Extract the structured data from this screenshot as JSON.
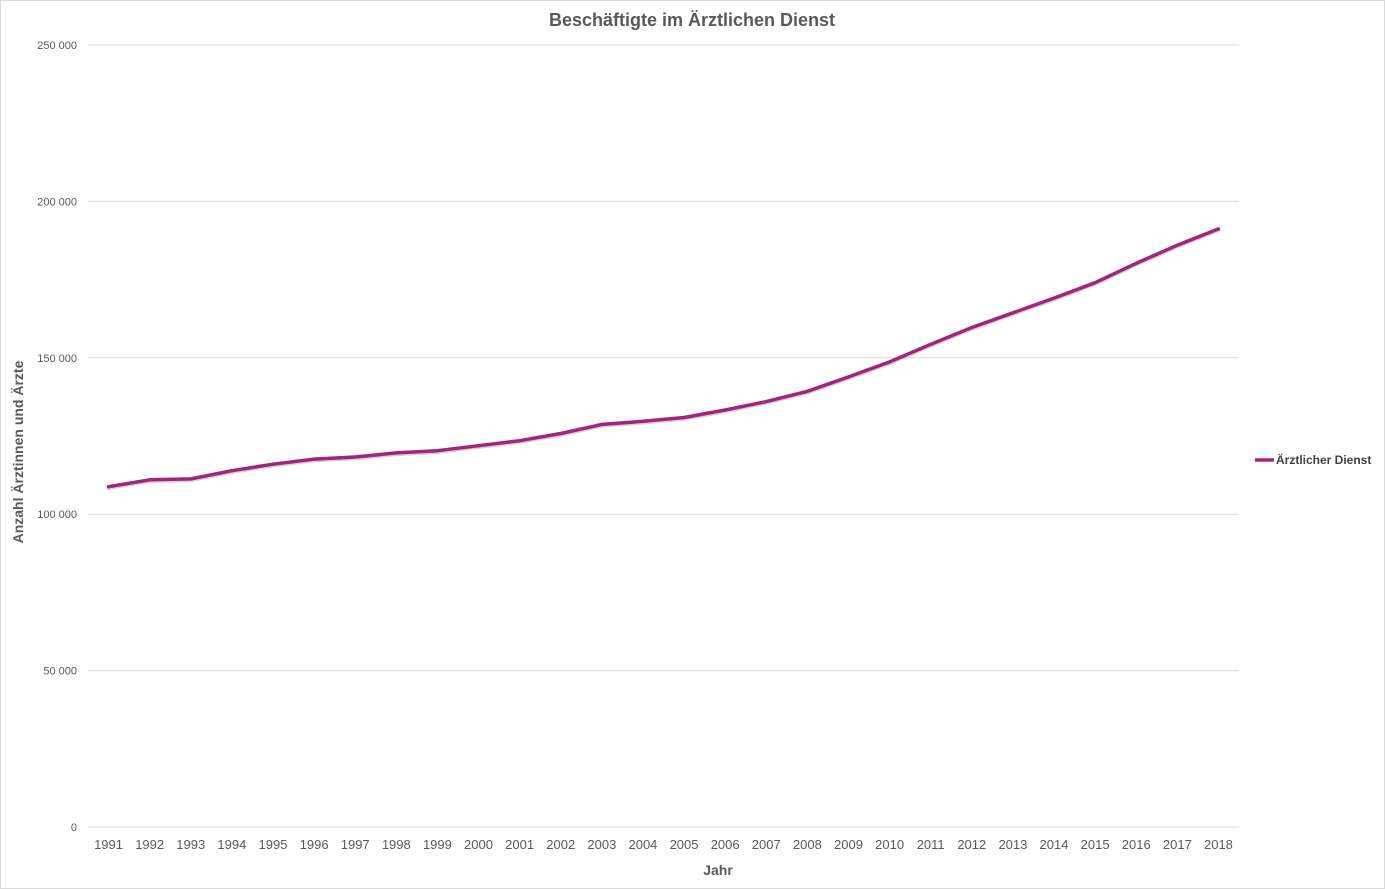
{
  "chart_data": {
    "type": "line",
    "title": "Beschäftigte im Ärztlichen Dienst",
    "xlabel": "Jahr",
    "ylabel": "Anzahl Ärztinnen und Ärzte",
    "ylim": [
      0,
      250000
    ],
    "y_ticks": [
      "0",
      "50 000",
      "100 000",
      "150 000",
      "200 000",
      "250 000"
    ],
    "y_tick_values": [
      0,
      50000,
      100000,
      150000,
      200000,
      250000
    ],
    "categories": [
      "1991",
      "1992",
      "1993",
      "1994",
      "1995",
      "1996",
      "1997",
      "1998",
      "1999",
      "2000",
      "2001",
      "2002",
      "2003",
      "2004",
      "2005",
      "2006",
      "2007",
      "2008",
      "2009",
      "2010",
      "2011",
      "2012",
      "2013",
      "2014",
      "2015",
      "2016",
      "2017",
      "2018"
    ],
    "series": [
      {
        "name": "Ärztlicher Dienst",
        "color": "#a3247f",
        "values": [
          108800,
          111000,
          111300,
          113900,
          116000,
          117600,
          118300,
          119600,
          120300,
          121900,
          123500,
          125800,
          128700,
          129700,
          130900,
          133300,
          136000,
          139300,
          143900,
          148700,
          154300,
          159700,
          164400,
          169100,
          174000,
          180200,
          186000,
          191200
        ]
      }
    ],
    "grid": true,
    "legend_position": "right"
  }
}
